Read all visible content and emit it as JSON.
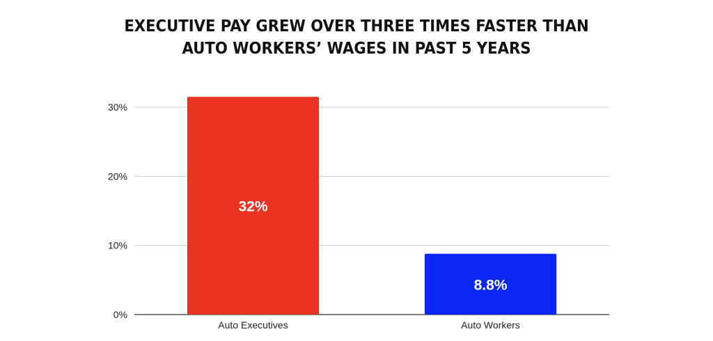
{
  "chart_data": {
    "type": "bar",
    "title_lines": [
      "EXECUTIVE PAY GREW OVER THREE TIMES FASTER THAN",
      "AUTO WORKERS’ WAGES IN PAST 5 YEARS"
    ],
    "xlabel": "",
    "ylabel": "",
    "categories": [
      "Auto Executives",
      "Auto Workers"
    ],
    "values": [
      31.5,
      8.8
    ],
    "data_labels": [
      "32%",
      "8.8%"
    ],
    "colors": [
      "#e93323",
      "#0a27f5"
    ],
    "ylim": [
      0,
      30
    ],
    "yticks": [
      0,
      10,
      20,
      30
    ],
    "ytick_labels": [
      "0%",
      "10%",
      "20%",
      "30%"
    ],
    "grid": true,
    "legend": "none"
  }
}
